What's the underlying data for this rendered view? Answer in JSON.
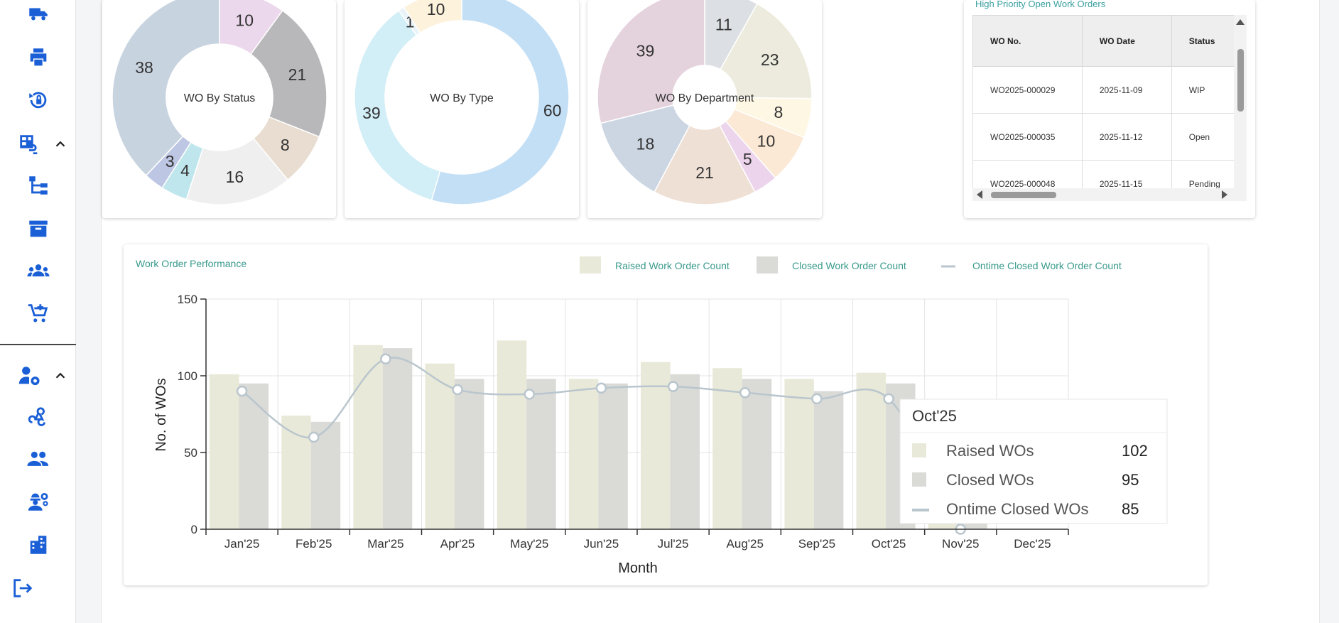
{
  "sidebar": {
    "items": [
      {
        "icon": "truck-icon"
      },
      {
        "icon": "printer-icon"
      },
      {
        "icon": "lock-reset-icon"
      },
      {
        "icon": "hierarchy-icon"
      },
      {
        "icon": "archive-icon"
      },
      {
        "icon": "groups-icon"
      },
      {
        "icon": "add-cart-icon"
      },
      {
        "icon": "webhook-icon"
      },
      {
        "icon": "people-icon"
      },
      {
        "icon": "engineer-icon"
      },
      {
        "icon": "building-icon"
      },
      {
        "icon": "logout-icon"
      }
    ],
    "groups": [
      {
        "icon": "asset-link-icon",
        "expanded": true
      },
      {
        "icon": "user-settings-icon",
        "expanded": true
      }
    ],
    "accent": "#1a5fd6"
  },
  "donuts": [
    {
      "center_label": "WO By Status",
      "slices": [
        {
          "label": "10",
          "value": 10,
          "color": "#ecd8ec"
        },
        {
          "label": "21",
          "value": 21,
          "color": "#b8b8bb"
        },
        {
          "label": "8",
          "value": 8,
          "color": "#e8ddd0"
        },
        {
          "label": "16",
          "value": 16,
          "color": "#efefef"
        },
        {
          "label": "4",
          "value": 4,
          "color": "#bfe6ec"
        },
        {
          "label": "3",
          "value": 3,
          "color": "#bdc6e3"
        },
        {
          "label": "38",
          "value": 38,
          "color": "#c8d3e0"
        }
      ]
    },
    {
      "center_label": "WO By Type",
      "slices": [
        {
          "label": "60",
          "value": 60,
          "color": "#c3dff6"
        },
        {
          "label": "39",
          "value": 39,
          "color": "#d2eef7"
        },
        {
          "label": "1",
          "value": 1,
          "color": "#e9f3f8"
        },
        {
          "label": "10",
          "value": 10,
          "color": "#fdf2dc"
        }
      ]
    },
    {
      "center_label": "WO By Department",
      "slices": [
        {
          "label": "11",
          "value": 11,
          "color": "#dcdfe3"
        },
        {
          "label": "23",
          "value": 23,
          "color": "#ecebdd"
        },
        {
          "label": "8",
          "value": 8,
          "color": "#fdf7e3"
        },
        {
          "label": "10",
          "value": 10,
          "color": "#fbe9d5"
        },
        {
          "label": "5",
          "value": 5,
          "color": "#ecd4ec"
        },
        {
          "label": "21",
          "value": 21,
          "color": "#efe0d6"
        },
        {
          "label": "18",
          "value": 18,
          "color": "#cbd6e2"
        },
        {
          "label": "39",
          "value": 39,
          "color": "#e4d2dd"
        }
      ]
    }
  ],
  "table": {
    "title": "High Priority Open Work Orders",
    "columns": [
      "WO No.",
      "WO Date",
      "Status"
    ],
    "rows": [
      [
        "WO2025-000029",
        "2025-11-09",
        "WIP"
      ],
      [
        "WO2025-000035",
        "2025-11-12",
        "Open"
      ],
      [
        "WO2025-000048",
        "2025-11-15",
        "Pending"
      ]
    ]
  },
  "chart_data": {
    "type": "bar",
    "title": "Work Order Performance",
    "categories": [
      "Jan'25",
      "Feb'25",
      "Mar'25",
      "Apr'25",
      "May'25",
      "Jun'25",
      "Jul'25",
      "Aug'25",
      "Sep'25",
      "Oct'25",
      "Nov'25",
      "Dec'25"
    ],
    "series": [
      {
        "name": "Raised Work Order Count",
        "type": "bar",
        "color": "#e9e9d9",
        "values": [
          101,
          74,
          120,
          108,
          123,
          98,
          109,
          105,
          98,
          102,
          12,
          0
        ]
      },
      {
        "name": "Closed Work Order Count",
        "type": "bar",
        "color": "#dadad7",
        "values": [
          95,
          70,
          118,
          98,
          98,
          95,
          101,
          98,
          90,
          95,
          10,
          0
        ]
      },
      {
        "name": "Ontime Closed Work Order Count",
        "type": "line",
        "color": "#b9c6cd",
        "values": [
          90,
          60,
          111,
          91,
          88,
          92,
          93,
          89,
          85,
          85,
          0,
          null
        ]
      }
    ],
    "xlabel": "Month",
    "ylabel": "No. of WOs",
    "ylim": [
      0,
      150
    ],
    "yticks": [
      "0",
      "50",
      "100",
      "150"
    ],
    "grid": true,
    "legend_position": "top-right",
    "tooltip": {
      "title": "Oct'25",
      "items": [
        {
          "name": "Raised WOs",
          "value": "102",
          "color": "#e9e9d9",
          "marker": "square"
        },
        {
          "name": "Closed WOs",
          "value": "95",
          "color": "#dadad7",
          "marker": "square"
        },
        {
          "name": "Ontime Closed WOs",
          "value": "85",
          "color": "#b9c6cd",
          "marker": "line"
        }
      ]
    }
  }
}
